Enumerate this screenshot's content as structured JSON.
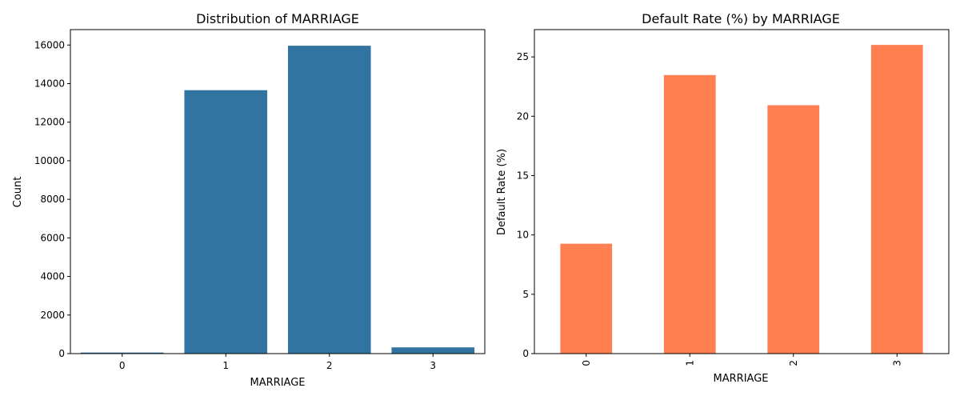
{
  "chart_data": [
    {
      "type": "bar",
      "title": "Distribution of MARRIAGE",
      "xlabel": "MARRIAGE",
      "ylabel": "Count",
      "categories": [
        "0",
        "1",
        "2",
        "3"
      ],
      "values": [
        54,
        13659,
        15964,
        323
      ],
      "ylim": [
        0,
        16800
      ],
      "yticks": [
        0,
        2000,
        4000,
        6000,
        8000,
        10000,
        12000,
        14000,
        16000
      ],
      "bar_color": "#3274a1",
      "grid": false
    },
    {
      "type": "bar",
      "title": "Default Rate (%) by MARRIAGE",
      "xlabel": "MARRIAGE",
      "ylabel": "Default Rate (%)",
      "categories": [
        "0",
        "1",
        "2",
        "3"
      ],
      "values": [
        9.26,
        23.47,
        20.93,
        26.01
      ],
      "ylim": [
        0,
        27.3
      ],
      "yticks": [
        0,
        5,
        10,
        15,
        20,
        25
      ],
      "bar_color": "#ff7f50",
      "xtick_rotation": "vertical",
      "grid": false
    }
  ]
}
